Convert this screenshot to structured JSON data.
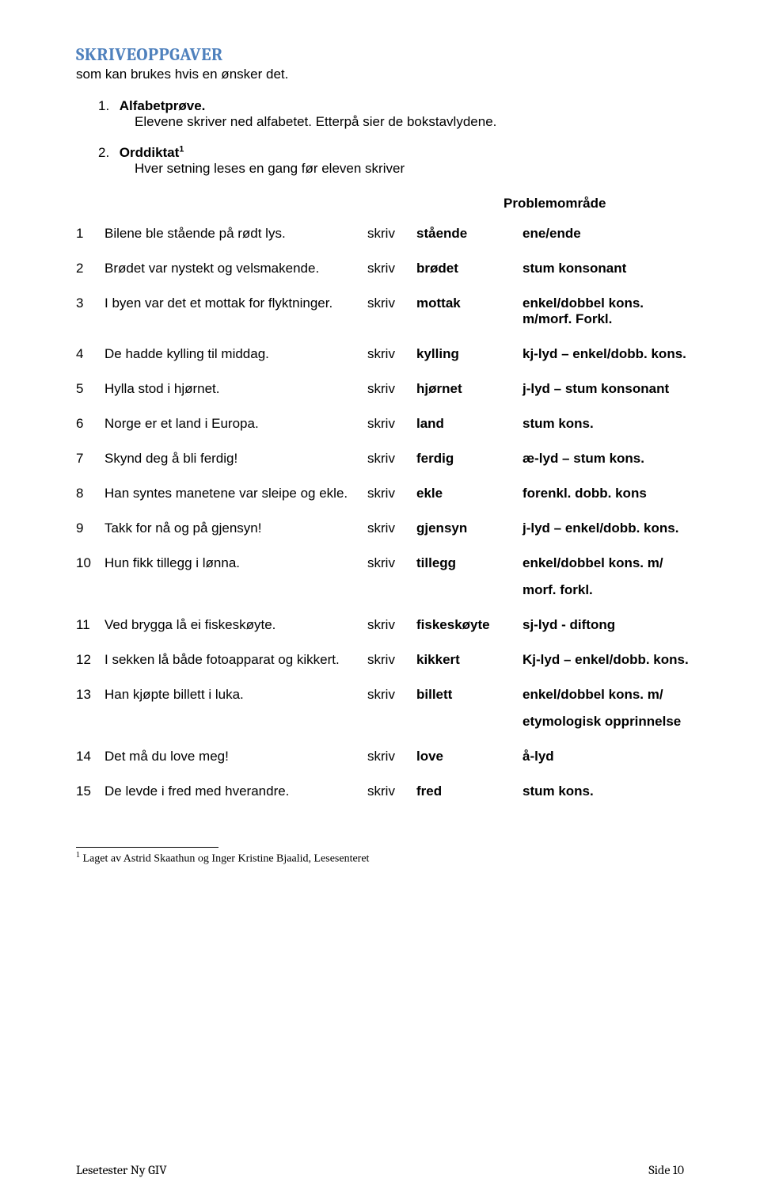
{
  "header": {
    "title": "SKRIVEOPPGAVER",
    "subtitle": "som kan brukes hvis en ønsker det."
  },
  "tasks": [
    {
      "num": "1.",
      "label": "Alfabetprøve.",
      "sub": "Elevene skriver ned alfabetet. Etterpå sier de bokstavlydene."
    },
    {
      "num": "2.",
      "label": "Orddiktat",
      "sup": "1",
      "sub": "Hver setning leses en gang før eleven skriver"
    }
  ],
  "problem_header": "Problemområde",
  "rows": [
    {
      "n": "1",
      "s": "Bilene ble stående på rødt lys.",
      "k": "skriv",
      "w": "stående",
      "p": "ene/ende"
    },
    {
      "n": "2",
      "s": "Brødet var nystekt og velsmakende.",
      "k": "skriv",
      "w": "brødet",
      "p": "stum konsonant"
    },
    {
      "n": "3",
      "s": "I byen var det et mottak for flyktninger.",
      "k": "skriv",
      "w": "mottak",
      "p": "enkel/dobbel kons. m/morf. Forkl."
    },
    {
      "n": "4",
      "s": "De hadde kylling til middag.",
      "k": "skriv",
      "w": "kylling",
      "p": "kj-lyd – enkel/dobb. kons."
    },
    {
      "n": "5",
      "s": "Hylla stod i hjørnet.",
      "k": "skriv",
      "w": "hjørnet",
      "p": "j-lyd – stum konsonant"
    },
    {
      "n": "6",
      "s": "Norge er et land i Europa.",
      "k": "skriv",
      "w": "land",
      "p": "stum kons."
    },
    {
      "n": "7",
      "s": "Skynd deg å bli ferdig!",
      "k": "skriv",
      "w": "ferdig",
      "p": "æ-lyd – stum kons."
    },
    {
      "n": "8",
      "s": "Han syntes manetene var sleipe og ekle.",
      "k": "skriv",
      "w": "ekle",
      "p": "forenkl. dobb. kons"
    },
    {
      "n": "9",
      "s": "Takk for nå og på gjensyn!",
      "k": "skriv",
      "w": "gjensyn",
      "p": "j-lyd – enkel/dobb. kons."
    },
    {
      "n": "10",
      "s": "Hun fikk tillegg i lønna.",
      "k": "skriv",
      "w": "tillegg",
      "p": "enkel/dobbel kons. m/",
      "extra": "morf. forkl."
    },
    {
      "n": "11",
      "s": "Ved brygga lå ei fiskeskøyte.",
      "k": "skriv",
      "w": "fiskeskøyte",
      "p": "sj-lyd - diftong"
    },
    {
      "n": "12",
      "s": "I sekken lå både fotoapparat og kikkert.",
      "k": "skriv",
      "w": "kikkert",
      "p": "Kj-lyd – enkel/dobb. kons."
    },
    {
      "n": "13",
      "s": "Han kjøpte billett i luka.",
      "k": "skriv",
      "w": "billett",
      "p": "enkel/dobbel kons. m/",
      "extra": "etymologisk opprinnelse"
    },
    {
      "n": "14",
      "s": "Det må du love meg!",
      "k": "skriv",
      "w": "love",
      "p": "å-lyd"
    },
    {
      "n": "15",
      "s": "De levde i fred med hverandre.",
      "k": "skriv",
      "w": "fred",
      "p": "stum kons."
    }
  ],
  "footnote": {
    "num": "1",
    "text": " Laget av Astrid Skaathun og Inger Kristine Bjaalid, Lesesenteret"
  },
  "footer": {
    "left": "Lesetester Ny GIV",
    "right": "Side 10"
  }
}
